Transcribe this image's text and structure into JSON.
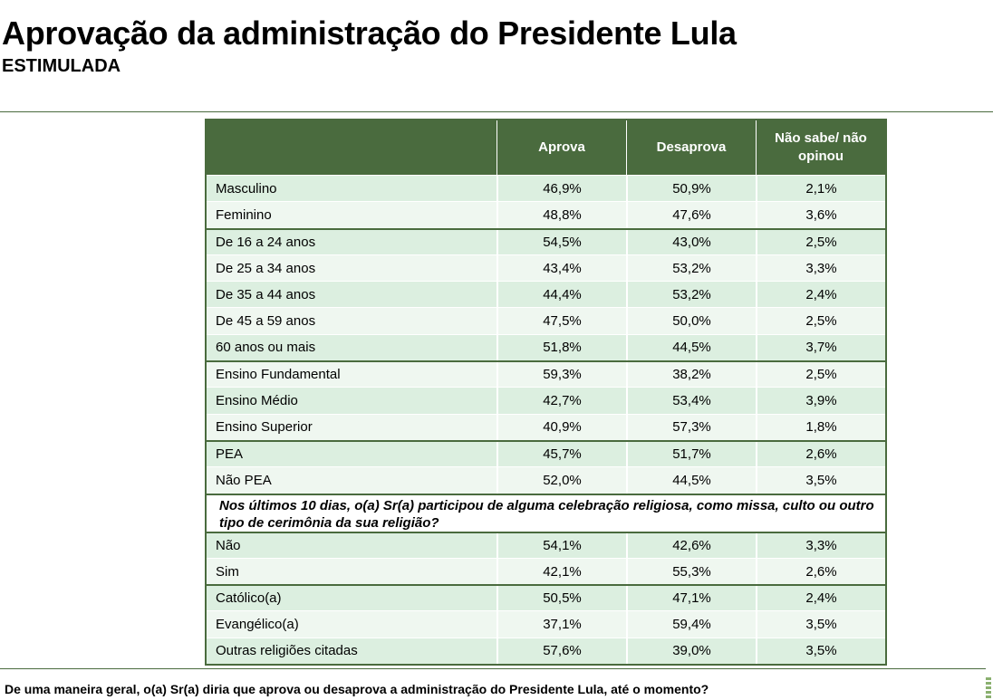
{
  "header": {
    "title": "Aprovação da administração do Presidente Lula",
    "subtitle": "ESTIMULADA"
  },
  "table": {
    "columns": [
      "",
      "Aprova",
      "Desaprova",
      "Não sabe/ não opinou"
    ],
    "groups": [
      {
        "rows": [
          {
            "label": "Masculino",
            "aprova": "46,9%",
            "desaprova": "50,9%",
            "nao_sabe": "2,1%"
          },
          {
            "label": "Feminino",
            "aprova": "48,8%",
            "desaprova": "47,6%",
            "nao_sabe": "3,6%"
          }
        ]
      },
      {
        "rows": [
          {
            "label": "De 16 a 24 anos",
            "aprova": "54,5%",
            "desaprova": "43,0%",
            "nao_sabe": "2,5%"
          },
          {
            "label": "De 25 a 34 anos",
            "aprova": "43,4%",
            "desaprova": "53,2%",
            "nao_sabe": "3,3%"
          },
          {
            "label": "De 35 a 44 anos",
            "aprova": "44,4%",
            "desaprova": "53,2%",
            "nao_sabe": "2,4%"
          },
          {
            "label": "De 45 a 59 anos",
            "aprova": "47,5%",
            "desaprova": "50,0%",
            "nao_sabe": "2,5%"
          },
          {
            "label": "60 anos ou mais",
            "aprova": "51,8%",
            "desaprova": "44,5%",
            "nao_sabe": "3,7%"
          }
        ]
      },
      {
        "rows": [
          {
            "label": "Ensino Fundamental",
            "aprova": "59,3%",
            "desaprova": "38,2%",
            "nao_sabe": "2,5%"
          },
          {
            "label": "Ensino Médio",
            "aprova": "42,7%",
            "desaprova": "53,4%",
            "nao_sabe": "3,9%"
          },
          {
            "label": "Ensino Superior",
            "aprova": "40,9%",
            "desaprova": "57,3%",
            "nao_sabe": "1,8%"
          }
        ]
      },
      {
        "rows": [
          {
            "label": "PEA",
            "aprova": "45,7%",
            "desaprova": "51,7%",
            "nao_sabe": "2,6%"
          },
          {
            "label": "Não PEA",
            "aprova": "52,0%",
            "desaprova": "44,5%",
            "nao_sabe": "3,5%"
          }
        ]
      },
      {
        "question": "Nos últimos 10 dias, o(a) Sr(a) participou de alguma celebração religiosa, como missa, culto ou outro tipo de cerimônia da sua religião?"
      },
      {
        "rows": [
          {
            "label": "Não",
            "aprova": "54,1%",
            "desaprova": "42,6%",
            "nao_sabe": "3,3%"
          },
          {
            "label": "Sim",
            "aprova": "42,1%",
            "desaprova": "55,3%",
            "nao_sabe": "2,6%"
          }
        ]
      },
      {
        "rows": [
          {
            "label": "Católico(a)",
            "aprova": "50,5%",
            "desaprova": "47,1%",
            "nao_sabe": "2,4%"
          },
          {
            "label": "Evangélico(a)",
            "aprova": "37,1%",
            "desaprova": "59,4%",
            "nao_sabe": "3,5%"
          },
          {
            "label": "Outras religiões citadas",
            "aprova": "57,6%",
            "desaprova": "39,0%",
            "nao_sabe": "3,5%"
          }
        ]
      }
    ]
  },
  "footnote": "De uma maneira geral, o(a) Sr(a) diria que aprova ou desaprova a administração do Presidente Lula, até o momento?",
  "colors": {
    "header_bg": "#4a6b3e",
    "row_light": "#eff7f0",
    "row_dark": "#dcefe0"
  }
}
